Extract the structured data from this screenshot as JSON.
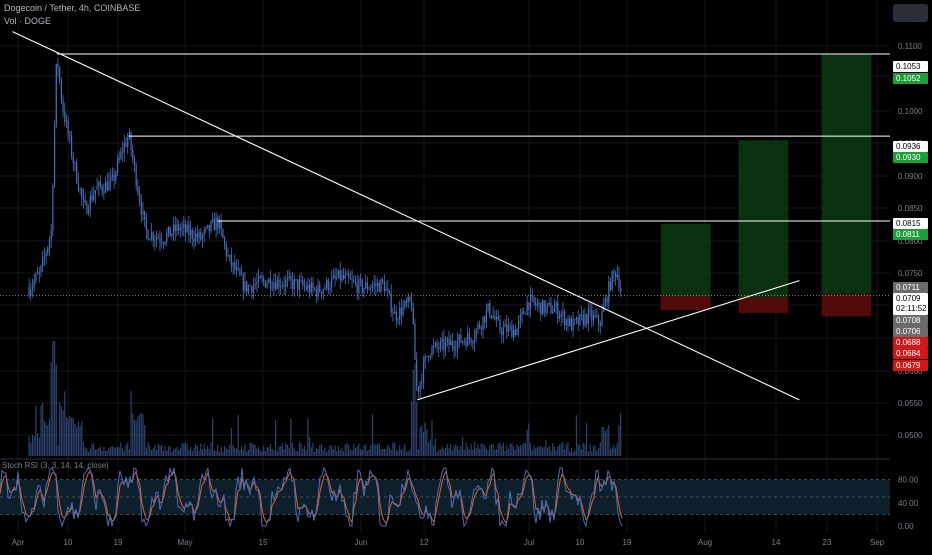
{
  "header": {
    "title": "Dogecoin / Tether, 4h, COINBASE",
    "volume_label": "Vol · DOGE"
  },
  "oscillator": {
    "label": "Stoch RSI (3, 3, 14, 14, close)",
    "ticks": [
      "80.00",
      "40.00",
      "0.00"
    ]
  },
  "colors": {
    "background": "#000000",
    "candle": "#4a6fb8",
    "line": "#ffffff",
    "profit_zone": "#0c3a12",
    "loss_zone": "#5a0a0a",
    "label_green": "#1e9e3a",
    "label_red": "#d01818",
    "label_gray": "#6b6b6b",
    "stoch_k": "#4a6fb8",
    "stoch_d": "#e0622a"
  },
  "chart_data": {
    "type": "candlestick",
    "title": "Dogecoin / Tether, 4h, COINBASE",
    "x_ticks": [
      "Apr",
      "10",
      "19",
      "May",
      "15",
      "Jun",
      "12",
      "Jul",
      "10",
      "19",
      "Aug",
      "14",
      "23",
      "Sep"
    ],
    "y_ticks": [
      "0.1100",
      "0.1050",
      "0.1000",
      "0.0950",
      "0.0900",
      "0.0850",
      "0.0800",
      "0.0750",
      "0.0700",
      "0.0650",
      "0.0600",
      "0.0550",
      "0.0500"
    ],
    "ylim": [
      0.048,
      0.113
    ],
    "price_path": [
      {
        "x": "2021-04-01",
        "y": 0.072
      },
      {
        "x": "2021-04-03",
        "y": 0.074
      },
      {
        "x": "2021-04-05",
        "y": 0.08
      },
      {
        "x": "2021-04-06",
        "y": 0.1053
      },
      {
        "x": "2021-04-07",
        "y": 0.098
      },
      {
        "x": "2021-04-09",
        "y": 0.09
      },
      {
        "x": "2021-04-11",
        "y": 0.083
      },
      {
        "x": "2021-04-13",
        "y": 0.086
      },
      {
        "x": "2021-04-16",
        "y": 0.087
      },
      {
        "x": "2021-04-18",
        "y": 0.092
      },
      {
        "x": "2021-04-19",
        "y": 0.0936
      },
      {
        "x": "2021-04-20",
        "y": 0.089
      },
      {
        "x": "2021-04-22",
        "y": 0.08
      },
      {
        "x": "2021-04-25",
        "y": 0.079
      },
      {
        "x": "2021-04-28",
        "y": 0.0805
      },
      {
        "x": "2021-05-02",
        "y": 0.079
      },
      {
        "x": "2021-05-05",
        "y": 0.0815
      },
      {
        "x": "2021-05-07",
        "y": 0.076
      },
      {
        "x": "2021-05-10",
        "y": 0.072
      },
      {
        "x": "2021-05-14",
        "y": 0.073
      },
      {
        "x": "2021-05-19",
        "y": 0.0725
      },
      {
        "x": "2021-05-23",
        "y": 0.0715
      },
      {
        "x": "2021-05-27",
        "y": 0.0735
      },
      {
        "x": "2021-05-31",
        "y": 0.072
      },
      {
        "x": "2021-06-04",
        "y": 0.0725
      },
      {
        "x": "2021-06-06",
        "y": 0.068
      },
      {
        "x": "2021-06-09",
        "y": 0.07
      },
      {
        "x": "2021-06-10",
        "y": 0.057
      },
      {
        "x": "2021-06-12",
        "y": 0.063
      },
      {
        "x": "2021-06-16",
        "y": 0.064
      },
      {
        "x": "2021-06-20",
        "y": 0.065
      },
      {
        "x": "2021-06-23",
        "y": 0.069
      },
      {
        "x": "2021-06-25",
        "y": 0.066
      },
      {
        "x": "2021-06-28",
        "y": 0.066
      },
      {
        "x": "2021-06-30",
        "y": 0.07
      },
      {
        "x": "2021-07-03",
        "y": 0.069
      },
      {
        "x": "2021-07-05",
        "y": 0.069
      },
      {
        "x": "2021-07-08",
        "y": 0.0665
      },
      {
        "x": "2021-07-11",
        "y": 0.068
      },
      {
        "x": "2021-07-13",
        "y": 0.067
      },
      {
        "x": "2021-07-15",
        "y": 0.073
      },
      {
        "x": "2021-07-16",
        "y": 0.0745
      },
      {
        "x": "2021-07-17",
        "y": 0.0709
      }
    ],
    "horizontal_levels": [
      0.1053,
      0.0936,
      0.0815
    ],
    "trendlines": [
      {
        "from": {
          "x": "2021-03-29",
          "y": 0.1085
        },
        "to": {
          "x": "2021-08-18",
          "y": 0.056
        }
      },
      {
        "from": {
          "x": "2021-06-10",
          "y": 0.056
        },
        "to": {
          "x": "2021-08-18",
          "y": 0.073
        }
      }
    ],
    "position_zones": [
      {
        "x_start": "2021-07-24",
        "x_end": "2021-08-02",
        "entry": 0.0708,
        "target": 0.0811,
        "stop": 0.0688
      },
      {
        "x_start": "2021-08-07",
        "x_end": "2021-08-16",
        "entry": 0.0706,
        "target": 0.093,
        "stop": 0.0684
      },
      {
        "x_start": "2021-08-22",
        "x_end": "2021-08-31",
        "entry": 0.0711,
        "target": 0.1052,
        "stop": 0.0679
      }
    ],
    "current_price": 0.0709,
    "price_labels": [
      {
        "text": "0.1053",
        "style": "white"
      },
      {
        "text": "0.1052",
        "style": "green"
      },
      {
        "text": "0.0936",
        "style": "white"
      },
      {
        "text": "0.0930",
        "style": "green"
      },
      {
        "text": "0.0815",
        "style": "white"
      },
      {
        "text": "0.0811",
        "style": "green"
      },
      {
        "text": "0.0711",
        "style": "gray"
      },
      {
        "text": "0.0709",
        "style": "white",
        "subtext": "02:11:52"
      },
      {
        "text": "0.0708",
        "style": "gray"
      },
      {
        "text": "0.0706",
        "style": "gray"
      },
      {
        "text": "0.0688",
        "style": "red"
      },
      {
        "text": "0.0684",
        "style": "red"
      },
      {
        "text": "0.0679",
        "style": "red"
      }
    ]
  }
}
